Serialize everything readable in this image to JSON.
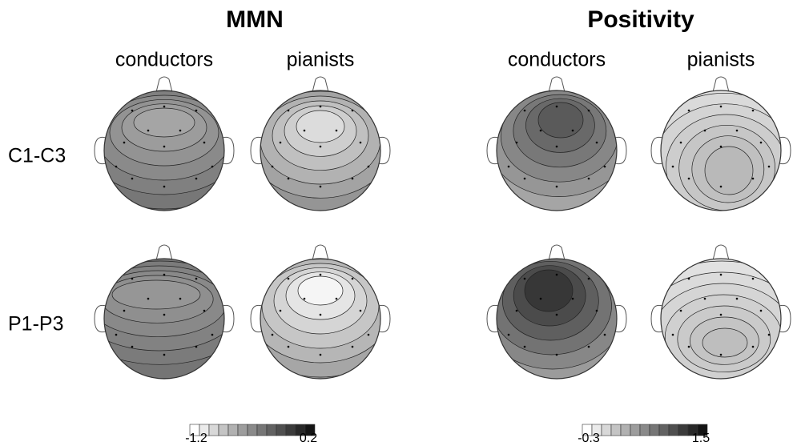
{
  "panels": [
    {
      "title": "MMN",
      "columns": [
        "conductors",
        "pianists"
      ],
      "colorbar": {
        "min": -1.2,
        "max": 0.2
      }
    },
    {
      "title": "Positivity",
      "columns": [
        "conductors",
        "pianists"
      ],
      "colorbar": {
        "min": -0.3,
        "max": 1.5
      }
    }
  ],
  "rows": [
    "C1-C3",
    "P1-P3"
  ]
}
